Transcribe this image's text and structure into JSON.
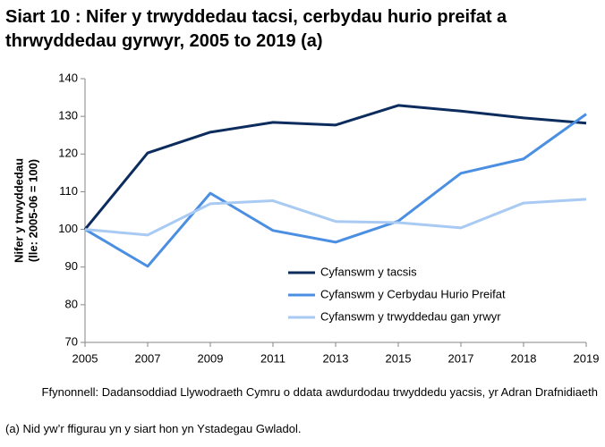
{
  "chart_data": {
    "type": "line",
    "title": "Siart 10 : Nifer y trwyddedau tacsi, cerbydau hurio preifat a thrwyddedau gyrwyr, 2005 to 2019 (a)",
    "ylabel": [
      "Nifer y trwyddedau",
      "(lle: 2005-06 = 100)"
    ],
    "categories": [
      "2005",
      "2007",
      "2009",
      "2011",
      "2013",
      "2015",
      "2017",
      "2018",
      "2019"
    ],
    "series": [
      {
        "name": "Cyfanswm y tacsis",
        "color": "#0c2c5e",
        "values": [
          100,
          120.3,
          125.8,
          128.4,
          127.7,
          132.9,
          131.4,
          129.6,
          128.2
        ]
      },
      {
        "name": "Cyfanswm y Cerbydau Hurio Preifat",
        "color": "#4b8fe2",
        "values": [
          100,
          90.2,
          109.6,
          99.7,
          96.6,
          102.2,
          114.9,
          118.7,
          130.6
        ]
      },
      {
        "name": "Cyfanswm y trwyddedau gan yrwyr",
        "color": "#a9caf2",
        "values": [
          100,
          98.5,
          106.8,
          107.6,
          102.1,
          101.8,
          100.4,
          107.0,
          108.0
        ]
      }
    ],
    "ylim": [
      70,
      140
    ],
    "yticks": [
      70,
      80,
      90,
      100,
      110,
      120,
      130,
      140
    ],
    "grid": false,
    "source": "Ffynonnell: Dadansoddiad Llywodraeth Cymru o ddata awdurdodau trwyddedu yacsis, yr Adran Drafnidiaeth",
    "note": "(a) Nid yw’r ffigurau yn y siart hon yn Ystadegau Gwladol."
  }
}
